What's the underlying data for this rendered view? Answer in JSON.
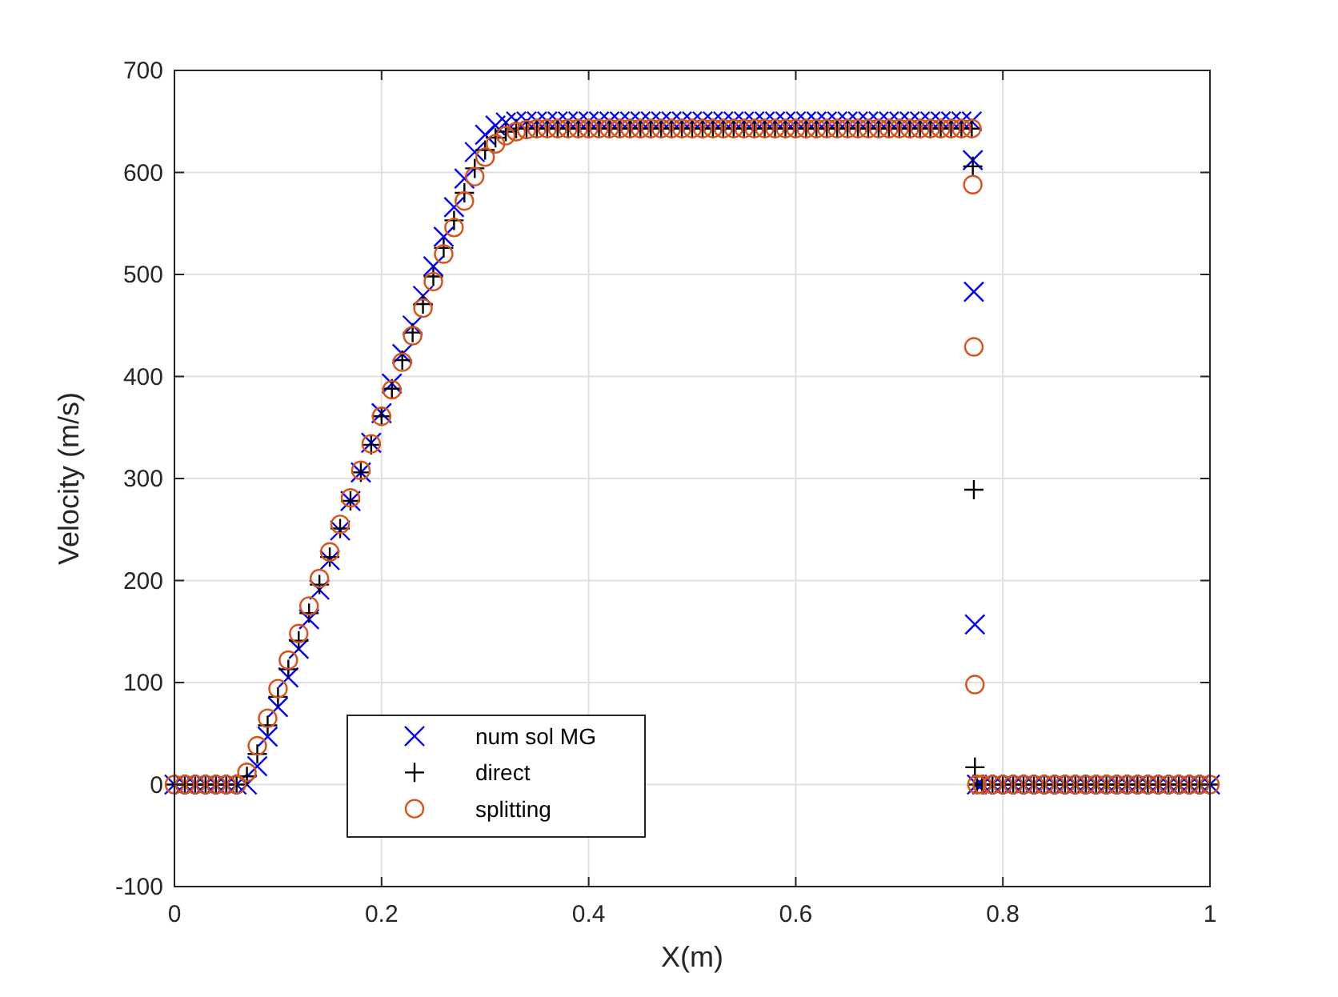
{
  "chart_data": {
    "type": "scatter",
    "xlabel": "X(m)",
    "ylabel": "Velocity (m/s)",
    "x": [
      0,
      0.01,
      0.02,
      0.03,
      0.04,
      0.05,
      0.06,
      0.07,
      0.08,
      0.09,
      0.1,
      0.11,
      0.12,
      0.13,
      0.14,
      0.15,
      0.16,
      0.17,
      0.18,
      0.19,
      0.2,
      0.21,
      0.22,
      0.23,
      0.24,
      0.25,
      0.26,
      0.27,
      0.28,
      0.29,
      0.3,
      0.31,
      0.32,
      0.33,
      0.34,
      0.35,
      0.36,
      0.37,
      0.38,
      0.39,
      0.4,
      0.41,
      0.42,
      0.43,
      0.44,
      0.45,
      0.46,
      0.47,
      0.48,
      0.49,
      0.5,
      0.51,
      0.52,
      0.53,
      0.54,
      0.55,
      0.56,
      0.57,
      0.58,
      0.59,
      0.6,
      0.61,
      0.62,
      0.63,
      0.64,
      0.65,
      0.66,
      0.67,
      0.68,
      0.69,
      0.7,
      0.71,
      0.72,
      0.73,
      0.74,
      0.75,
      0.76,
      0.77,
      0.771,
      0.772,
      0.773,
      0.775,
      0.78,
      0.79,
      0.8,
      0.81,
      0.82,
      0.83,
      0.84,
      0.85,
      0.86,
      0.87,
      0.88,
      0.89,
      0.9,
      0.91,
      0.92,
      0.93,
      0.94,
      0.95,
      0.96,
      0.97,
      0.98,
      0.99,
      1
    ],
    "series": [
      {
        "name": "num sol MG",
        "color": "#0000ff",
        "marker": "cross",
        "values": [
          0,
          0,
          0,
          0,
          0,
          0,
          0,
          0,
          18,
          47,
          76,
          105,
          133,
          162,
          191,
          220,
          249,
          278,
          306,
          335,
          364,
          393,
          422,
          450,
          479,
          508,
          537,
          566,
          594,
          620,
          637,
          646,
          649,
          650,
          650,
          650,
          650,
          650,
          650,
          650,
          650,
          650,
          650,
          650,
          650,
          650,
          650,
          650,
          650,
          650,
          650,
          650,
          650,
          650,
          650,
          650,
          650,
          650,
          650,
          650,
          650,
          650,
          650,
          650,
          650,
          650,
          650,
          650,
          650,
          650,
          650,
          650,
          650,
          650,
          650,
          650,
          650,
          650,
          612,
          483,
          157,
          0,
          0,
          0,
          0,
          0,
          0,
          0,
          0,
          0,
          0,
          0,
          0,
          0,
          0,
          0,
          0,
          0,
          0,
          0,
          0,
          0,
          0,
          0,
          0
        ]
      },
      {
        "name": "direct",
        "color": "#000000",
        "marker": "plus",
        "values": [
          0,
          0,
          0,
          0,
          0,
          0,
          0,
          8,
          30,
          58,
          86,
          113,
          141,
          168,
          196,
          223,
          251,
          278,
          306,
          333,
          361,
          388,
          416,
          443,
          471,
          498,
          526,
          553,
          580,
          604,
          622,
          634,
          640,
          643,
          643,
          643,
          643,
          643,
          643,
          643,
          643,
          643,
          643,
          643,
          643,
          643,
          643,
          643,
          643,
          643,
          643,
          643,
          643,
          643,
          643,
          643,
          643,
          643,
          643,
          643,
          643,
          643,
          643,
          643,
          643,
          643,
          643,
          643,
          643,
          643,
          643,
          643,
          643,
          643,
          643,
          643,
          643,
          643,
          606,
          289,
          17,
          0,
          0,
          0,
          0,
          0,
          0,
          0,
          0,
          0,
          0,
          0,
          0,
          0,
          0,
          0,
          0,
          0,
          0,
          0,
          0,
          0,
          0,
          0,
          0
        ]
      },
      {
        "name": "splitting",
        "color": "#d95319",
        "marker": "circle",
        "values": [
          0,
          0,
          0,
          0,
          0,
          0,
          0,
          12,
          38,
          65,
          94,
          122,
          148,
          175,
          202,
          228,
          255,
          281,
          308,
          334,
          361,
          387,
          414,
          440,
          467,
          493,
          520,
          546,
          572,
          596,
          615,
          628,
          636,
          640,
          642,
          643,
          643,
          643,
          643,
          643,
          643,
          643,
          643,
          643,
          643,
          643,
          643,
          643,
          643,
          643,
          643,
          643,
          643,
          643,
          643,
          643,
          643,
          643,
          643,
          643,
          643,
          643,
          643,
          643,
          643,
          643,
          643,
          643,
          643,
          643,
          643,
          643,
          643,
          643,
          643,
          643,
          643,
          643,
          588,
          429,
          98,
          0,
          0,
          0,
          0,
          0,
          0,
          0,
          0,
          0,
          0,
          0,
          0,
          0,
          0,
          0,
          0,
          0,
          0,
          0,
          0,
          0,
          0,
          0,
          0
        ]
      }
    ],
    "xlim": [
      0,
      1
    ],
    "xticks": [
      0,
      0.2,
      0.4,
      0.6,
      0.8,
      1
    ],
    "ylim": [
      -100,
      700
    ],
    "yticks": [
      -100,
      0,
      100,
      200,
      300,
      400,
      500,
      600,
      700
    ],
    "grid": true,
    "legend": "bottom left"
  }
}
